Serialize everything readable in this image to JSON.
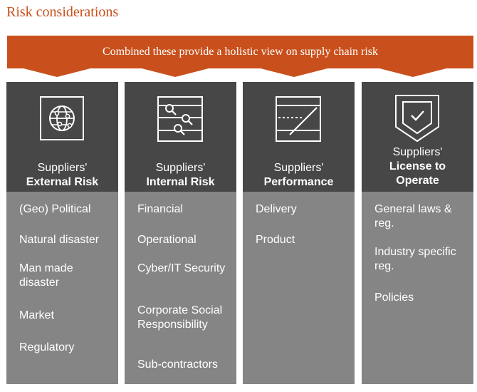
{
  "title": "Risk considerations",
  "banner": {
    "text": "Combined these provide a holistic view on supply chain risk"
  },
  "colors": {
    "accent": "#c9501c",
    "header_bg": "#474747",
    "body_bg": "#858585"
  },
  "columns": [
    {
      "icon": "globe-icon",
      "title_line1": "Suppliers'",
      "title_line2": "External Risk",
      "title_line3": "",
      "items": [
        "(Geo) Political",
        "Natural disaster",
        "Man made disaster",
        "Market",
        "Regulatory"
      ]
    },
    {
      "icon": "magnifier-sliders-icon",
      "title_line1": "Suppliers'",
      "title_line2": "Internal Risk",
      "title_line3": "",
      "items": [
        "Financial",
        "Operational",
        "Cyber/IT Security",
        "Corporate Social Responsibility",
        "Sub-contractors"
      ]
    },
    {
      "icon": "performance-chart-icon",
      "title_line1": "Suppliers'",
      "title_line2": "Performance",
      "title_line3": "",
      "items": [
        "Delivery",
        "Product"
      ]
    },
    {
      "icon": "shield-check-icon",
      "title_line1": "Suppliers'",
      "title_line2": "License to",
      "title_line3": "Operate",
      "items": [
        "General laws & reg.",
        "Industry specific reg.",
        "Policies"
      ]
    }
  ]
}
